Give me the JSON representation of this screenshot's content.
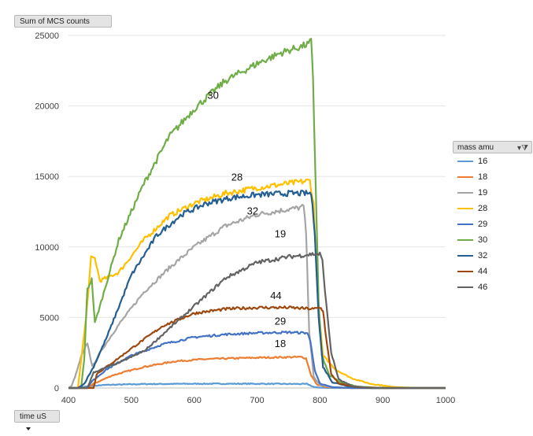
{
  "chart_data": {
    "type": "line",
    "y_field": "Sum of MCS counts",
    "x_field": "time uS",
    "legend_title": "mass amu",
    "xlim": [
      400,
      1000
    ],
    "ylim": [
      0,
      25000
    ],
    "xticks": [
      400,
      500,
      600,
      700,
      800,
      900,
      1000
    ],
    "yticks": [
      0,
      5000,
      10000,
      15000,
      20000,
      25000
    ],
    "grid": "horizontal",
    "legend_position": "right",
    "series": [
      {
        "name": "16",
        "color": "#5b9bd5",
        "points": [
          [
            400,
            0
          ],
          [
            412,
            0
          ],
          [
            430,
            120
          ],
          [
            460,
            220
          ],
          [
            520,
            280
          ],
          [
            600,
            300
          ],
          [
            700,
            300
          ],
          [
            780,
            280
          ],
          [
            790,
            80
          ],
          [
            800,
            20
          ],
          [
            820,
            0
          ],
          [
            1000,
            0
          ]
        ]
      },
      {
        "name": "18",
        "color": "#ed7d31",
        "points": [
          [
            400,
            0
          ],
          [
            430,
            0
          ],
          [
            440,
            300
          ],
          [
            470,
            900
          ],
          [
            520,
            1500
          ],
          [
            570,
            1900
          ],
          [
            620,
            2050
          ],
          [
            700,
            2150
          ],
          [
            770,
            2200
          ],
          [
            778,
            2100
          ],
          [
            786,
            900
          ],
          [
            795,
            250
          ],
          [
            810,
            60
          ],
          [
            850,
            0
          ],
          [
            1000,
            0
          ]
        ]
      },
      {
        "name": "19",
        "color": "#a5a5a5",
        "points": [
          [
            400,
            0
          ],
          [
            405,
            150
          ],
          [
            412,
            1000
          ],
          [
            420,
            2200
          ],
          [
            430,
            3200
          ],
          [
            438,
            1500
          ],
          [
            450,
            2500
          ],
          [
            480,
            4500
          ],
          [
            520,
            6800
          ],
          [
            560,
            8500
          ],
          [
            600,
            10000
          ],
          [
            650,
            11500
          ],
          [
            700,
            12300
          ],
          [
            740,
            12600
          ],
          [
            770,
            12800
          ],
          [
            774,
            12900
          ],
          [
            778,
            11000
          ],
          [
            783,
            4000
          ],
          [
            790,
            800
          ],
          [
            800,
            200
          ],
          [
            820,
            40
          ],
          [
            850,
            0
          ],
          [
            1000,
            0
          ]
        ]
      },
      {
        "name": "28",
        "color": "#ffc000",
        "points": [
          [
            400,
            0
          ],
          [
            415,
            0
          ],
          [
            428,
            5000
          ],
          [
            436,
            9200
          ],
          [
            442,
            9200
          ],
          [
            450,
            7600
          ],
          [
            460,
            7800
          ],
          [
            480,
            8200
          ],
          [
            520,
            10500
          ],
          [
            560,
            12200
          ],
          [
            600,
            13100
          ],
          [
            650,
            13800
          ],
          [
            700,
            14200
          ],
          [
            750,
            14500
          ],
          [
            784,
            14700
          ],
          [
            790,
            13000
          ],
          [
            797,
            6000
          ],
          [
            805,
            2300
          ],
          [
            825,
            1300
          ],
          [
            850,
            700
          ],
          [
            880,
            300
          ],
          [
            920,
            60
          ],
          [
            960,
            0
          ],
          [
            1000,
            0
          ]
        ]
      },
      {
        "name": "29",
        "color": "#4472c4",
        "points": [
          [
            400,
            0
          ],
          [
            430,
            0
          ],
          [
            438,
            500
          ],
          [
            460,
            1300
          ],
          [
            500,
            2300
          ],
          [
            550,
            3100
          ],
          [
            600,
            3600
          ],
          [
            650,
            3800
          ],
          [
            700,
            3900
          ],
          [
            750,
            3950
          ],
          [
            780,
            3900
          ],
          [
            785,
            3300
          ],
          [
            792,
            1200
          ],
          [
            800,
            300
          ],
          [
            820,
            60
          ],
          [
            850,
            0
          ],
          [
            1000,
            0
          ]
        ]
      },
      {
        "name": "30",
        "color": "#70ad47",
        "points": [
          [
            400,
            0
          ],
          [
            420,
            0
          ],
          [
            425,
            2000
          ],
          [
            430,
            7000
          ],
          [
            437,
            7700
          ],
          [
            442,
            4600
          ],
          [
            450,
            5800
          ],
          [
            480,
            10500
          ],
          [
            520,
            14500
          ],
          [
            560,
            17800
          ],
          [
            600,
            19800
          ],
          [
            650,
            21800
          ],
          [
            700,
            23000
          ],
          [
            740,
            23800
          ],
          [
            770,
            24200
          ],
          [
            782,
            24400
          ],
          [
            786,
            24600
          ],
          [
            789,
            22000
          ],
          [
            793,
            15000
          ],
          [
            798,
            6000
          ],
          [
            803,
            2300
          ],
          [
            815,
            900
          ],
          [
            835,
            350
          ],
          [
            860,
            100
          ],
          [
            900,
            0
          ],
          [
            1000,
            0
          ]
        ]
      },
      {
        "name": "32",
        "color": "#255e91",
        "points": [
          [
            400,
            0
          ],
          [
            415,
            0
          ],
          [
            425,
            300
          ],
          [
            440,
            1500
          ],
          [
            460,
            3500
          ],
          [
            500,
            8000
          ],
          [
            540,
            10800
          ],
          [
            580,
            12300
          ],
          [
            620,
            13100
          ],
          [
            660,
            13500
          ],
          [
            700,
            13700
          ],
          [
            750,
            13800
          ],
          [
            786,
            13800
          ],
          [
            792,
            11000
          ],
          [
            798,
            5000
          ],
          [
            805,
            1500
          ],
          [
            820,
            400
          ],
          [
            850,
            100
          ],
          [
            880,
            0
          ],
          [
            1000,
            0
          ]
        ]
      },
      {
        "name": "44",
        "color": "#9e480e",
        "points": [
          [
            400,
            0
          ],
          [
            440,
            0
          ],
          [
            445,
            1000
          ],
          [
            470,
            1800
          ],
          [
            500,
            2800
          ],
          [
            550,
            4400
          ],
          [
            600,
            5300
          ],
          [
            650,
            5600
          ],
          [
            700,
            5700
          ],
          [
            750,
            5700
          ],
          [
            790,
            5600
          ],
          [
            800,
            5700
          ],
          [
            805,
            5500
          ],
          [
            810,
            3500
          ],
          [
            818,
            1000
          ],
          [
            830,
            300
          ],
          [
            860,
            60
          ],
          [
            900,
            0
          ],
          [
            1000,
            0
          ]
        ]
      },
      {
        "name": "46",
        "color": "#636363",
        "points": [
          [
            400,
            0
          ],
          [
            430,
            0
          ],
          [
            440,
            1100
          ],
          [
            480,
            1800
          ],
          [
            520,
            2600
          ],
          [
            560,
            4200
          ],
          [
            600,
            5800
          ],
          [
            650,
            7800
          ],
          [
            700,
            8900
          ],
          [
            750,
            9300
          ],
          [
            790,
            9500
          ],
          [
            800,
            9500
          ],
          [
            804,
            9000
          ],
          [
            810,
            6000
          ],
          [
            818,
            2500
          ],
          [
            830,
            600
          ],
          [
            850,
            150
          ],
          [
            880,
            0
          ],
          [
            1000,
            0
          ]
        ]
      }
    ],
    "annotations": [
      {
        "text": "30",
        "x": 630,
        "y": 20500
      },
      {
        "text": "28",
        "x": 668,
        "y": 14700
      },
      {
        "text": "32",
        "x": 693,
        "y": 12300
      },
      {
        "text": "19",
        "x": 737,
        "y": 10700
      },
      {
        "text": "44",
        "x": 730,
        "y": 6300
      },
      {
        "text": "29",
        "x": 737,
        "y": 4500
      },
      {
        "text": "18",
        "x": 737,
        "y": 2900
      }
    ]
  }
}
